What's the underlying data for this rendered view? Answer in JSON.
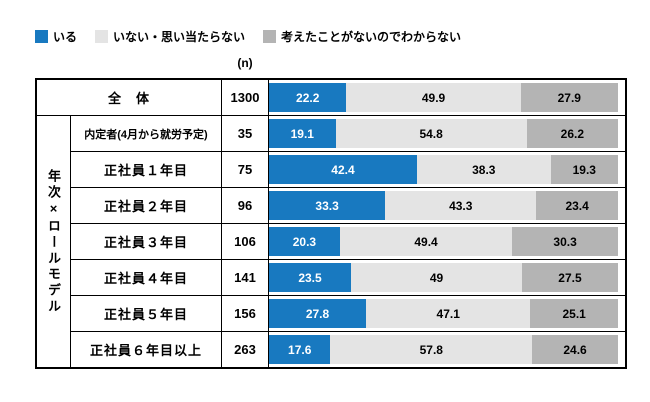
{
  "legend": [
    {
      "label": "いる",
      "color": "#1879c0"
    },
    {
      "label": "いない・思い当たらない",
      "color": "#e4e4e4"
    },
    {
      "label": "考えたことがないのでわからない",
      "color": "#b4b4b4"
    }
  ],
  "n_header": "(n)",
  "group_label": "年次×ロールモデル",
  "colors": {
    "yes": "#1879c0",
    "no_none": "#e4e4e4",
    "dont_know": "#b4b4b4"
  },
  "text_colors": [
    "#ffffff",
    "#000000",
    "#000000"
  ],
  "chart_data": {
    "type": "bar",
    "stacked": true,
    "orientation": "horizontal",
    "unit": "%",
    "xlim": [
      0,
      100
    ],
    "legend_position": "top-left",
    "series_names": [
      "いる",
      "いない・思い当たらない",
      "考えたことがないのでわからない"
    ],
    "rows": [
      {
        "label": "全　体",
        "n": "1300",
        "values": [
          22.2,
          49.9,
          27.9
        ]
      },
      {
        "label": "内定者(4月から就労予定)",
        "n": "35",
        "values": [
          19.1,
          54.8,
          26.2
        ]
      },
      {
        "label": "正社員１年目",
        "n": "75",
        "values": [
          42.4,
          38.3,
          19.3
        ]
      },
      {
        "label": "正社員２年目",
        "n": "96",
        "values": [
          33.3,
          43.3,
          23.4
        ]
      },
      {
        "label": "正社員３年目",
        "n": "106",
        "values": [
          20.3,
          49.4,
          30.3
        ]
      },
      {
        "label": "正社員４年目",
        "n": "141",
        "values": [
          23.5,
          49,
          27.5
        ]
      },
      {
        "label": "正社員５年目",
        "n": "156",
        "values": [
          27.8,
          47.1,
          25.1
        ]
      },
      {
        "label": "正社員６年目以上",
        "n": "263",
        "values": [
          17.6,
          57.8,
          24.6
        ]
      }
    ]
  }
}
